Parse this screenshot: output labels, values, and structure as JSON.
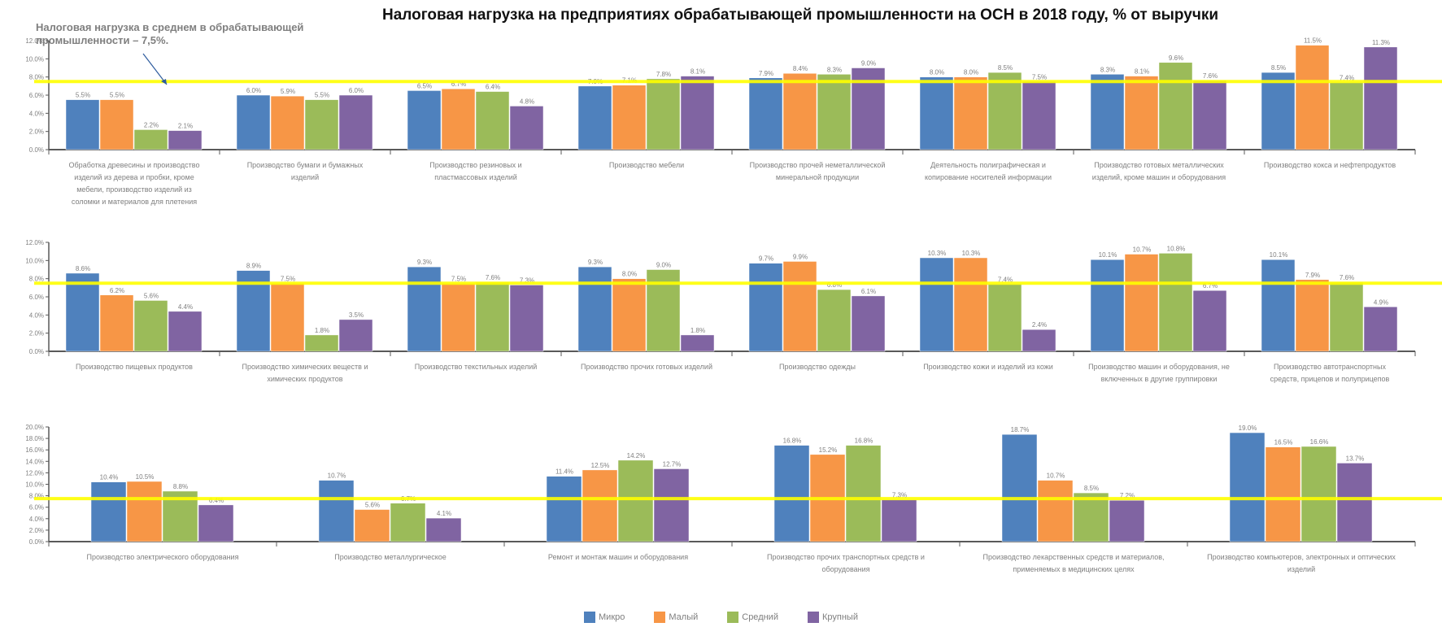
{
  "title": "Налоговая нагрузка на предприятиях обрабатывающей промышленности на ОСН в 2018 году, % от выручки",
  "annotation": "Налоговая нагрузка в среднем в обрабатывающей промышленности – 7,5%.",
  "colors": {
    "Микро": "#4f81bd",
    "Малый": "#f79646",
    "Средний": "#9bbb59",
    "Крупный": "#8064a2",
    "average_line": "#ffff00",
    "axis": "#595959",
    "text": "#7f7f7f"
  },
  "legend": [
    {
      "key": "Микро",
      "label": "Микро"
    },
    {
      "key": "Малый",
      "label": "Малый"
    },
    {
      "key": "Средний",
      "label": "Средний"
    },
    {
      "key": "Крупный",
      "label": "Крупный"
    }
  ],
  "chart_data": [
    {
      "type": "bar",
      "ylim": [
        0,
        12
      ],
      "yticks": [
        "0.0%",
        "2.0%",
        "4.0%",
        "6.0%",
        "8.0%",
        "10.0%",
        "12.0%"
      ],
      "average": 7.5,
      "series_names": [
        "Микро",
        "Малый",
        "Средний",
        "Крупный"
      ],
      "categories": [
        {
          "label": "Обработка древесины и производство изделий из дерева и пробки, кроме мебели, производство изделий из соломки и материалов для плетения",
          "values": [
            5.5,
            5.5,
            2.2,
            2.1
          ],
          "value_labels": [
            "5.5%",
            "5.5%",
            "2.2%",
            "2.1%"
          ]
        },
        {
          "label": "Производство бумаги и бумажных изделий",
          "values": [
            6.0,
            5.9,
            5.5,
            6.0
          ],
          "value_labels": [
            "6.0%",
            "5.9%",
            "5.5%",
            "6.0%"
          ]
        },
        {
          "label": "Производство резиновых и пластмассовых изделий",
          "values": [
            6.5,
            6.7,
            6.4,
            4.8
          ],
          "value_labels": [
            "6.5%",
            "6.7%",
            "6.4%",
            "4.8%"
          ]
        },
        {
          "label": "Производство мебели",
          "values": [
            7.0,
            7.1,
            7.8,
            8.1
          ],
          "value_labels": [
            "7.0%",
            "7.1%",
            "7.8%",
            "8.1%"
          ]
        },
        {
          "label": "Производство прочей неметаллической минеральной продукции",
          "values": [
            7.9,
            8.4,
            8.3,
            9.0
          ],
          "value_labels": [
            "7.9%",
            "8.4%",
            "8.3%",
            "9.0%"
          ]
        },
        {
          "label": "Деятельность полиграфическая и копирование носителей информации",
          "values": [
            8.0,
            8.0,
            8.5,
            7.5
          ],
          "value_labels": [
            "8.0%",
            "8.0%",
            "8.5%",
            "7.5%"
          ]
        },
        {
          "label": "Производство готовых металлических изделий, кроме машин и оборудования",
          "values": [
            8.3,
            8.1,
            9.6,
            7.6
          ],
          "value_labels": [
            "8.3%",
            "8.1%",
            "9.6%",
            "7.6%"
          ]
        },
        {
          "label": "Производство кокса и нефтепродуктов",
          "values": [
            8.5,
            11.5,
            7.4,
            11.3
          ],
          "value_labels": [
            "8.5%",
            "11.5%",
            "7.4%",
            "11.3%"
          ]
        }
      ]
    },
    {
      "type": "bar",
      "ylim": [
        0,
        12
      ],
      "yticks": [
        "0.0%",
        "2.0%",
        "4.0%",
        "6.0%",
        "8.0%",
        "10.0%",
        "12.0%"
      ],
      "average": 7.5,
      "series_names": [
        "Микро",
        "Малый",
        "Средний",
        "Крупный"
      ],
      "categories": [
        {
          "label": "Производство пищевых продуктов",
          "values": [
            8.6,
            6.2,
            5.6,
            4.4
          ],
          "value_labels": [
            "8.6%",
            "6.2%",
            "5.6%",
            "4.4%"
          ]
        },
        {
          "label": "Производство химических веществ и химических продуктов",
          "values": [
            8.9,
            7.5,
            1.8,
            3.5
          ],
          "value_labels": [
            "8.9%",
            "7.5%",
            "1.8%",
            "3.5%"
          ]
        },
        {
          "label": "Производство текстильных изделий",
          "values": [
            9.3,
            7.5,
            7.6,
            7.3
          ],
          "value_labels": [
            "9.3%",
            "7.5%",
            "7.6%",
            "7.3%"
          ]
        },
        {
          "label": "Производство прочих готовых изделий",
          "values": [
            9.3,
            8.0,
            9.0,
            1.8
          ],
          "value_labels": [
            "9.3%",
            "8.0%",
            "9.0%",
            "1.8%"
          ]
        },
        {
          "label": "Производство одежды",
          "values": [
            9.7,
            9.9,
            6.8,
            6.1
          ],
          "value_labels": [
            "9.7%",
            "9.9%",
            "6.8%",
            "6.1%"
          ]
        },
        {
          "label": "Производство кожи и изделий из кожи",
          "values": [
            10.3,
            10.3,
            7.4,
            2.4
          ],
          "value_labels": [
            "10.3%",
            "10.3%",
            "7.4%",
            "2.4%"
          ]
        },
        {
          "label": "Производство машин и оборудования, не включенных в другие группировки",
          "values": [
            10.1,
            10.7,
            10.8,
            6.7
          ],
          "value_labels": [
            "10.1%",
            "10.7%",
            "10.8%",
            "6.7%"
          ]
        },
        {
          "label": "Производство автотранспортных средств, прицепов и полуприцепов",
          "values": [
            10.1,
            7.9,
            7.6,
            4.9
          ],
          "value_labels": [
            "10.1%",
            "7.9%",
            "7.6%",
            "4.9%"
          ]
        }
      ]
    },
    {
      "type": "bar",
      "ylim": [
        0,
        20
      ],
      "yticks": [
        "0.0%",
        "2.0%",
        "4.0%",
        "6.0%",
        "8.0%",
        "10.0%",
        "12.0%",
        "14.0%",
        "16.0%",
        "18.0%",
        "20.0%"
      ],
      "average": 7.5,
      "series_names": [
        "Микро",
        "Малый",
        "Средний",
        "Крупный"
      ],
      "categories": [
        {
          "label": "Производство электрического оборудования",
          "values": [
            10.4,
            10.5,
            8.8,
            6.4
          ],
          "value_labels": [
            "10.4%",
            "10.5%",
            "8.8%",
            "6.4%"
          ]
        },
        {
          "label": "Производство металлургическое",
          "values": [
            10.7,
            5.6,
            6.7,
            4.1
          ],
          "value_labels": [
            "10.7%",
            "5.6%",
            "6.7%",
            "4.1%"
          ]
        },
        {
          "label": "Ремонт и монтаж машин и оборудования",
          "values": [
            11.4,
            12.5,
            14.2,
            12.7
          ],
          "value_labels": [
            "11.4%",
            "12.5%",
            "14.2%",
            "12.7%"
          ]
        },
        {
          "label": "Производство прочих транспортных средств и оборудования",
          "values": [
            16.8,
            15.2,
            16.8,
            7.3
          ],
          "value_labels": [
            "16.8%",
            "15.2%",
            "16.8%",
            "7.3%"
          ]
        },
        {
          "label": "Производство лекарственных средств и материалов, применяемых в медицинских целях",
          "values": [
            18.7,
            10.7,
            8.5,
            7.2
          ],
          "value_labels": [
            "18.7%",
            "10.7%",
            "8.5%",
            "7.2%"
          ]
        },
        {
          "label": "Производство компьютеров, электронных и оптических изделий",
          "values": [
            19.0,
            16.5,
            16.6,
            13.7
          ],
          "value_labels": [
            "19.0%",
            "16.5%",
            "16.6%",
            "13.7%"
          ]
        }
      ]
    }
  ]
}
